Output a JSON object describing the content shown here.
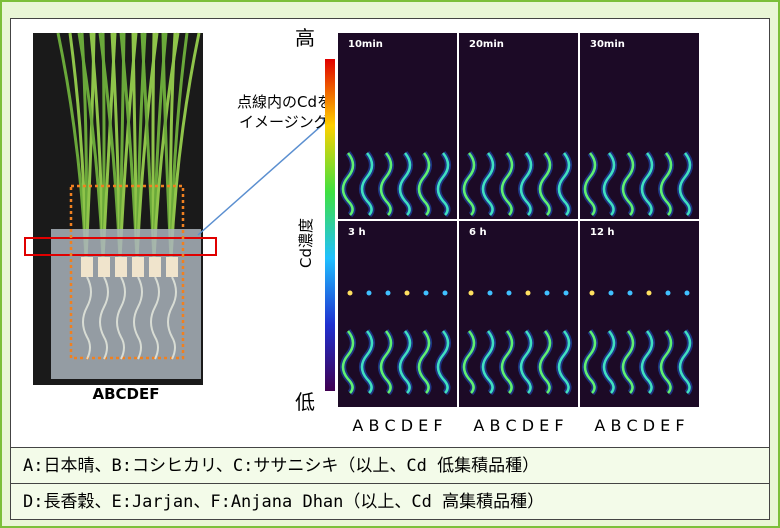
{
  "legend": {
    "high": "高",
    "low": "低",
    "axis_label": "Cd濃度"
  },
  "callout": [
    "点線内のCdを",
    "イメージング"
  ],
  "photo_label": "ABCDEF",
  "panels": [
    {
      "label": "10min"
    },
    {
      "label": "20min"
    },
    {
      "label": "30min"
    },
    {
      "label": "3 h"
    },
    {
      "label": "6 h"
    },
    {
      "label": "12 h"
    }
  ],
  "column_labels": [
    "A B C D E F",
    "A B C D E F",
    "A B C D E F"
  ],
  "caption": [
    "A:日本晴、B:コシヒカリ、C:ササニシキ（以上、Cd 低集積品種）",
    "D:長香穀、E:Jarjan、F:Anjana Dhan（以上、Cd 高集積品種）"
  ]
}
